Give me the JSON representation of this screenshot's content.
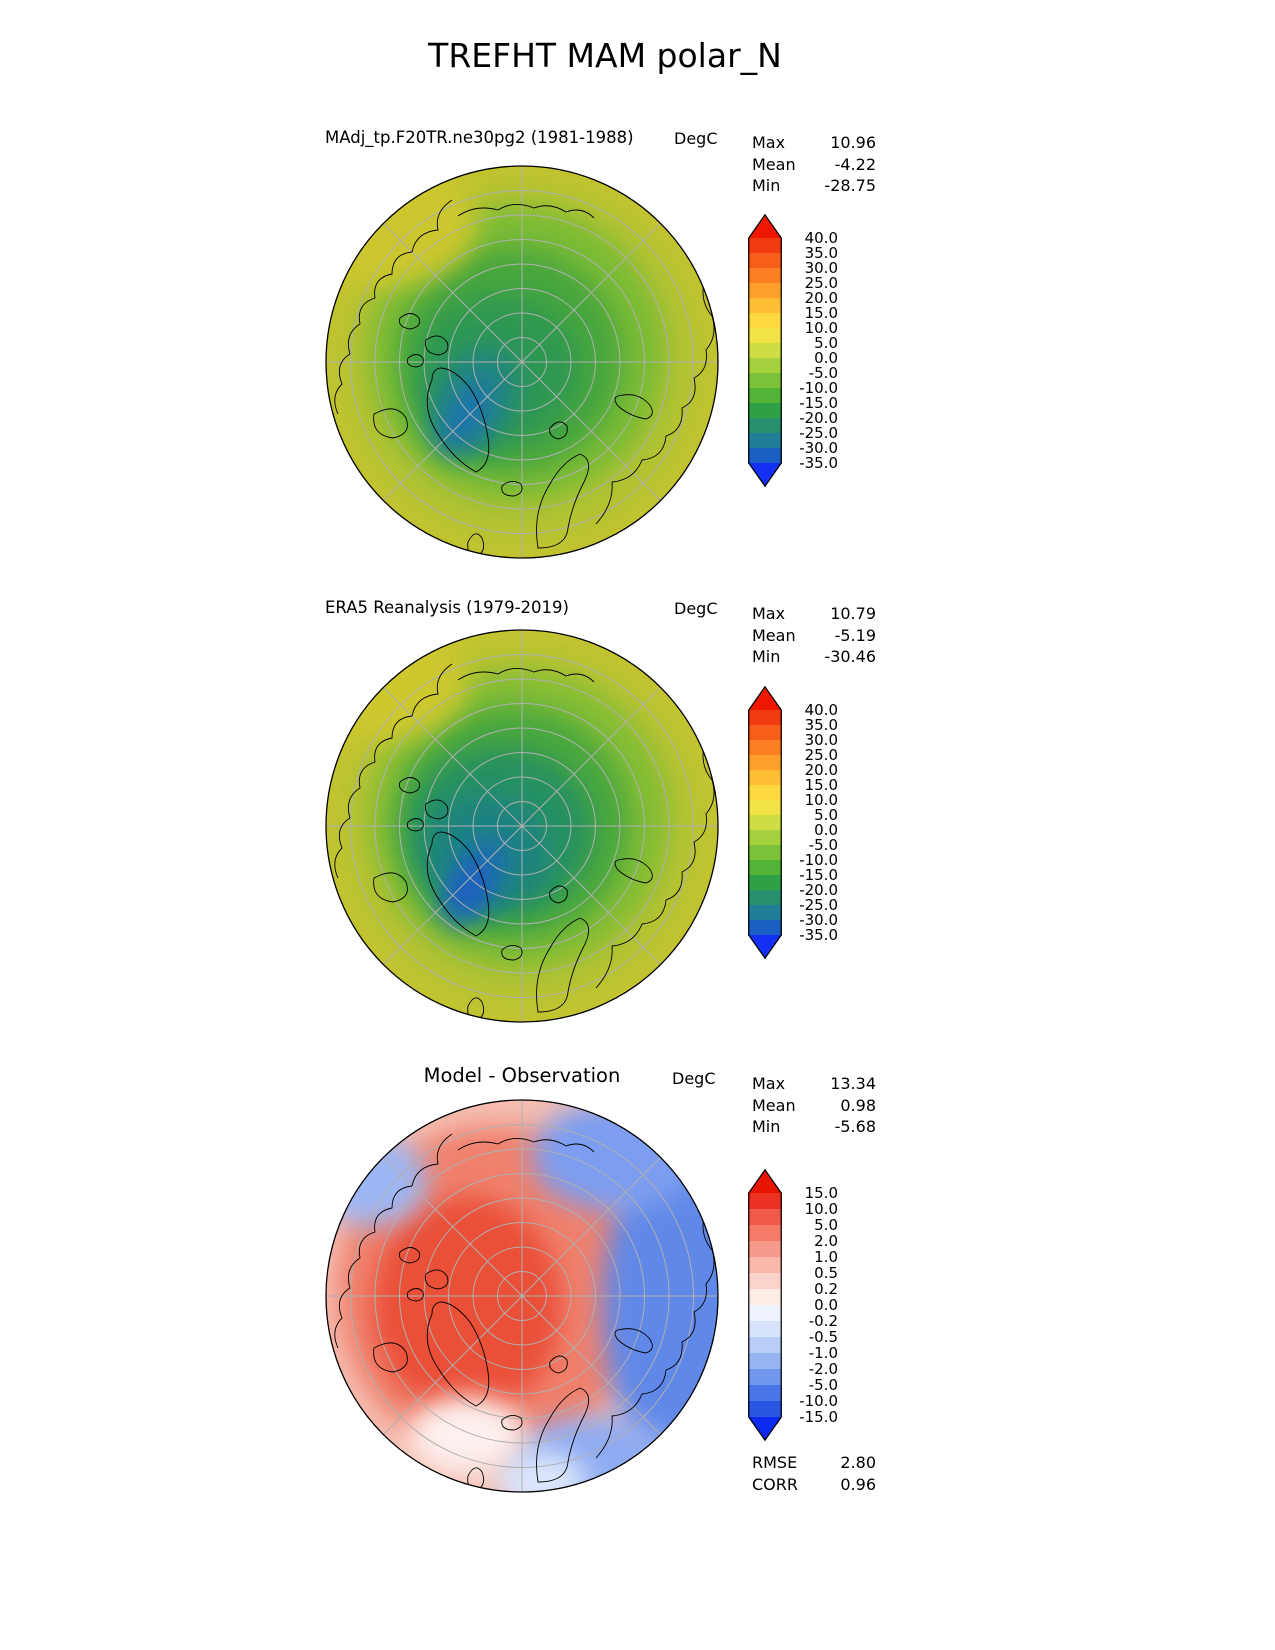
{
  "title": "TREFHT MAM polar_N",
  "panels": [
    {
      "title": "MAdj_tp.F20TR.ne30pg2 (1981-1988)",
      "units": "DegC",
      "stats": [
        {
          "label": "Max",
          "value": "10.96"
        },
        {
          "label": "Mean",
          "value": "-4.22"
        },
        {
          "label": "Min",
          "value": "-28.75"
        }
      ],
      "colorbar": {
        "ticks": [
          "40.0",
          "35.0",
          "30.0",
          "25.0",
          "20.0",
          "15.0",
          "10.0",
          "5.0",
          "0.0",
          "-5.0",
          "-10.0",
          "-15.0",
          "-20.0",
          "-25.0",
          "-30.0",
          "-35.0"
        ],
        "segment_colors": [
          "#f03a10",
          "#f85d1a",
          "#fc7f23",
          "#ffa02c",
          "#ffbe35",
          "#ffd93d",
          "#f2e246",
          "#cedd42",
          "#a6d13e",
          "#7bc23a",
          "#52b336",
          "#30a047",
          "#258f6e",
          "#207e98",
          "#1b5fc2"
        ],
        "arrow_top": "#ee1800",
        "arrow_bottom": "#1430f5"
      }
    },
    {
      "title": "ERA5 Reanalysis (1979-2019)",
      "units": "DegC",
      "stats": [
        {
          "label": "Max",
          "value": "10.79"
        },
        {
          "label": "Mean",
          "value": "-5.19"
        },
        {
          "label": "Min",
          "value": "-30.46"
        }
      ],
      "colorbar": {
        "ticks": [
          "40.0",
          "35.0",
          "30.0",
          "25.0",
          "20.0",
          "15.0",
          "10.0",
          "5.0",
          "0.0",
          "-5.0",
          "-10.0",
          "-15.0",
          "-20.0",
          "-25.0",
          "-30.0",
          "-35.0"
        ],
        "segment_colors": [
          "#f03a10",
          "#f85d1a",
          "#fc7f23",
          "#ffa02c",
          "#ffbe35",
          "#ffd93d",
          "#f2e246",
          "#cedd42",
          "#a6d13e",
          "#7bc23a",
          "#52b336",
          "#30a047",
          "#258f6e",
          "#207e98",
          "#1b5fc2"
        ],
        "arrow_top": "#ee1800",
        "arrow_bottom": "#1430f5"
      }
    },
    {
      "title": "Model - Observation",
      "units": "DegC",
      "stats": [
        {
          "label": "Max",
          "value": "13.34"
        },
        {
          "label": "Mean",
          "value": "0.98"
        },
        {
          "label": "Min",
          "value": "-5.68"
        }
      ],
      "extra_stats": [
        {
          "label": "RMSE",
          "value": "2.80"
        },
        {
          "label": "CORR",
          "value": "0.96"
        }
      ],
      "colorbar": {
        "ticks": [
          "15.0",
          "10.0",
          "5.0",
          "2.0",
          "1.0",
          "0.5",
          "0.2",
          "0.0",
          "-0.2",
          "-0.5",
          "-1.0",
          "-2.0",
          "-5.0",
          "-10.0",
          "-15.0"
        ],
        "segment_colors": [
          "#ec3123",
          "#f15948",
          "#f57a68",
          "#f89a8b",
          "#fab8ab",
          "#fcd3ca",
          "#fdebe6",
          "#edf2fc",
          "#d7e3fa",
          "#b9cef7",
          "#97b5f3",
          "#7096ee",
          "#4a76e8",
          "#2a55e0"
        ],
        "arrow_top": "#e81400",
        "arrow_bottom": "#0b2af0"
      }
    }
  ],
  "chart_data": [
    {
      "type": "heatmap",
      "subtype": "north-polar stereographic filled-contour map",
      "title": "MAdj_tp.F20TR.ne30pg2 (1981-1988)",
      "units": "DegC",
      "variable": "TREFHT",
      "season": "MAM",
      "region": "polar_N",
      "stats": {
        "max": 10.96,
        "mean": -4.22,
        "min": -28.75
      },
      "contour_levels": [
        40,
        35,
        30,
        25,
        20,
        15,
        10,
        5,
        0,
        -5,
        -10,
        -15,
        -20,
        -25,
        -30,
        -35
      ],
      "palette": "rainbow red(warm) to blue(cold), extended arrows both ends",
      "legend_position": "right",
      "grid": "gray graticule circles and 45-degree meridians"
    },
    {
      "type": "heatmap",
      "subtype": "north-polar stereographic filled-contour map",
      "title": "ERA5 Reanalysis (1979-2019)",
      "units": "DegC",
      "variable": "TREFHT",
      "season": "MAM",
      "region": "polar_N",
      "stats": {
        "max": 10.79,
        "mean": -5.19,
        "min": -30.46
      },
      "contour_levels": [
        40,
        35,
        30,
        25,
        20,
        15,
        10,
        5,
        0,
        -5,
        -10,
        -15,
        -20,
        -25,
        -30,
        -35
      ],
      "palette": "rainbow red(warm) to blue(cold), extended arrows both ends",
      "legend_position": "right",
      "grid": "gray graticule circles and 45-degree meridians"
    },
    {
      "type": "heatmap",
      "subtype": "north-polar stereographic filled-contour difference map",
      "title": "Model - Observation",
      "units": "DegC",
      "stats": {
        "max": 13.34,
        "mean": 0.98,
        "min": -5.68,
        "rmse": 2.8,
        "corr": 0.96
      },
      "contour_levels": [
        15,
        10,
        5,
        2,
        1,
        0.5,
        0.2,
        0,
        -0.2,
        -0.5,
        -1,
        -2,
        -5,
        -10,
        -15
      ],
      "palette": "diverging red-white-blue, extended arrows both ends",
      "legend_position": "right",
      "grid": "gray graticule circles and 45-degree meridians"
    }
  ]
}
